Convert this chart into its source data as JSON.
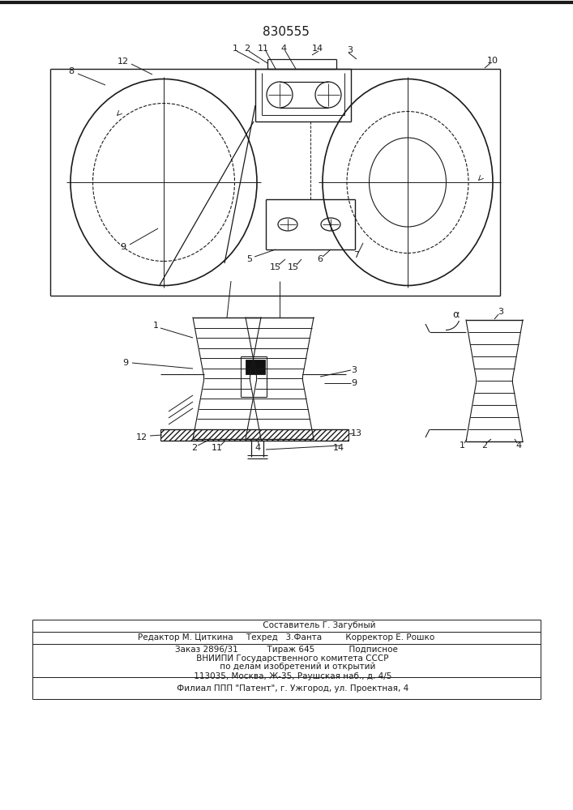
{
  "patent_number": "830555",
  "bg_color": "#ffffff",
  "line_color": "#1a1a1a",
  "label_fontsize": 8,
  "footer_line1": "                         Составитель Г. Загубный",
  "footer_line2": "Редактор М. Циткина     Техред   3.Фанта         Корректор Е. Рошко",
  "footer_line3": "Заказ 2896/31           Тираж 645             Подписное",
  "footer_line4": "     ВНИИПИ Государственного комитета СССР",
  "footer_line5": "         по делам изобретений и открытий",
  "footer_line6": "     113035, Москва, Ж-35, Раушская наб., д. 4/5",
  "footer_line7": "     Филиал ППП \"Патент\", г. Ужгород, ул. Проектная, 4"
}
